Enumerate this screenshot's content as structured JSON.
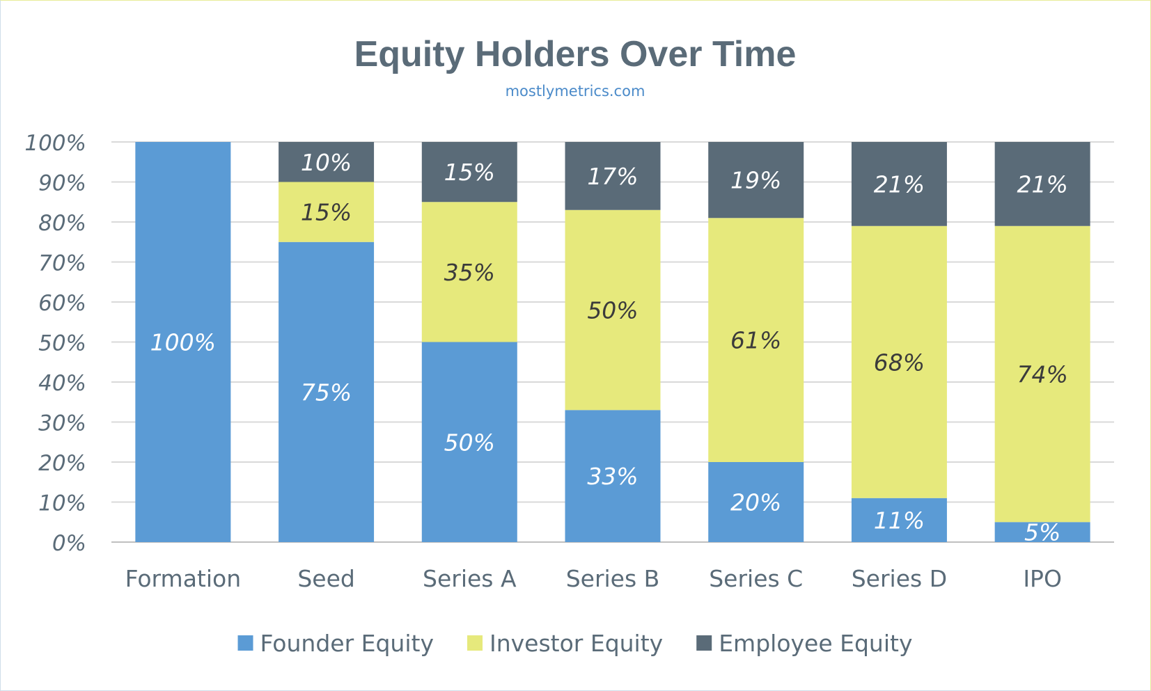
{
  "chart_data": {
    "type": "bar",
    "stacked": true,
    "title": "Equity Holders Over Time",
    "subtitle": "mostlymetrics.com",
    "categories": [
      "Formation",
      "Seed",
      "Series A",
      "Series B",
      "Series C",
      "Series D",
      "IPO"
    ],
    "series": [
      {
        "name": "Founder Equity",
        "color": "#5b9bd5",
        "label_color": "#ffffff",
        "values": [
          100,
          75,
          50,
          33,
          20,
          11,
          5
        ],
        "labels": [
          "100%",
          "75%",
          "50%",
          "33%",
          "20%",
          "11%",
          "5%"
        ]
      },
      {
        "name": "Investor Equity",
        "color": "#e6e97c",
        "label_color": "#3b3b3b",
        "values": [
          0,
          15,
          35,
          50,
          61,
          68,
          74
        ],
        "labels": [
          "",
          "15%",
          "35%",
          "50%",
          "61%",
          "68%",
          "74%"
        ]
      },
      {
        "name": "Employee Equity",
        "color": "#5a6b78",
        "label_color": "#ffffff",
        "values": [
          0,
          10,
          15,
          17,
          19,
          21,
          21
        ],
        "labels": [
          "",
          "10%",
          "15%",
          "17%",
          "19%",
          "21%",
          "21%"
        ]
      }
    ],
    "ylim": [
      0,
      100
    ],
    "y_ticks": [
      "0%",
      "10%",
      "20%",
      "30%",
      "40%",
      "50%",
      "60%",
      "70%",
      "80%",
      "90%",
      "100%"
    ],
    "grid": true,
    "legend_position": "bottom",
    "text_color": "#5a6b78",
    "subtitle_color": "#4a8ac9",
    "gridline_color": "#d9d9d9"
  }
}
